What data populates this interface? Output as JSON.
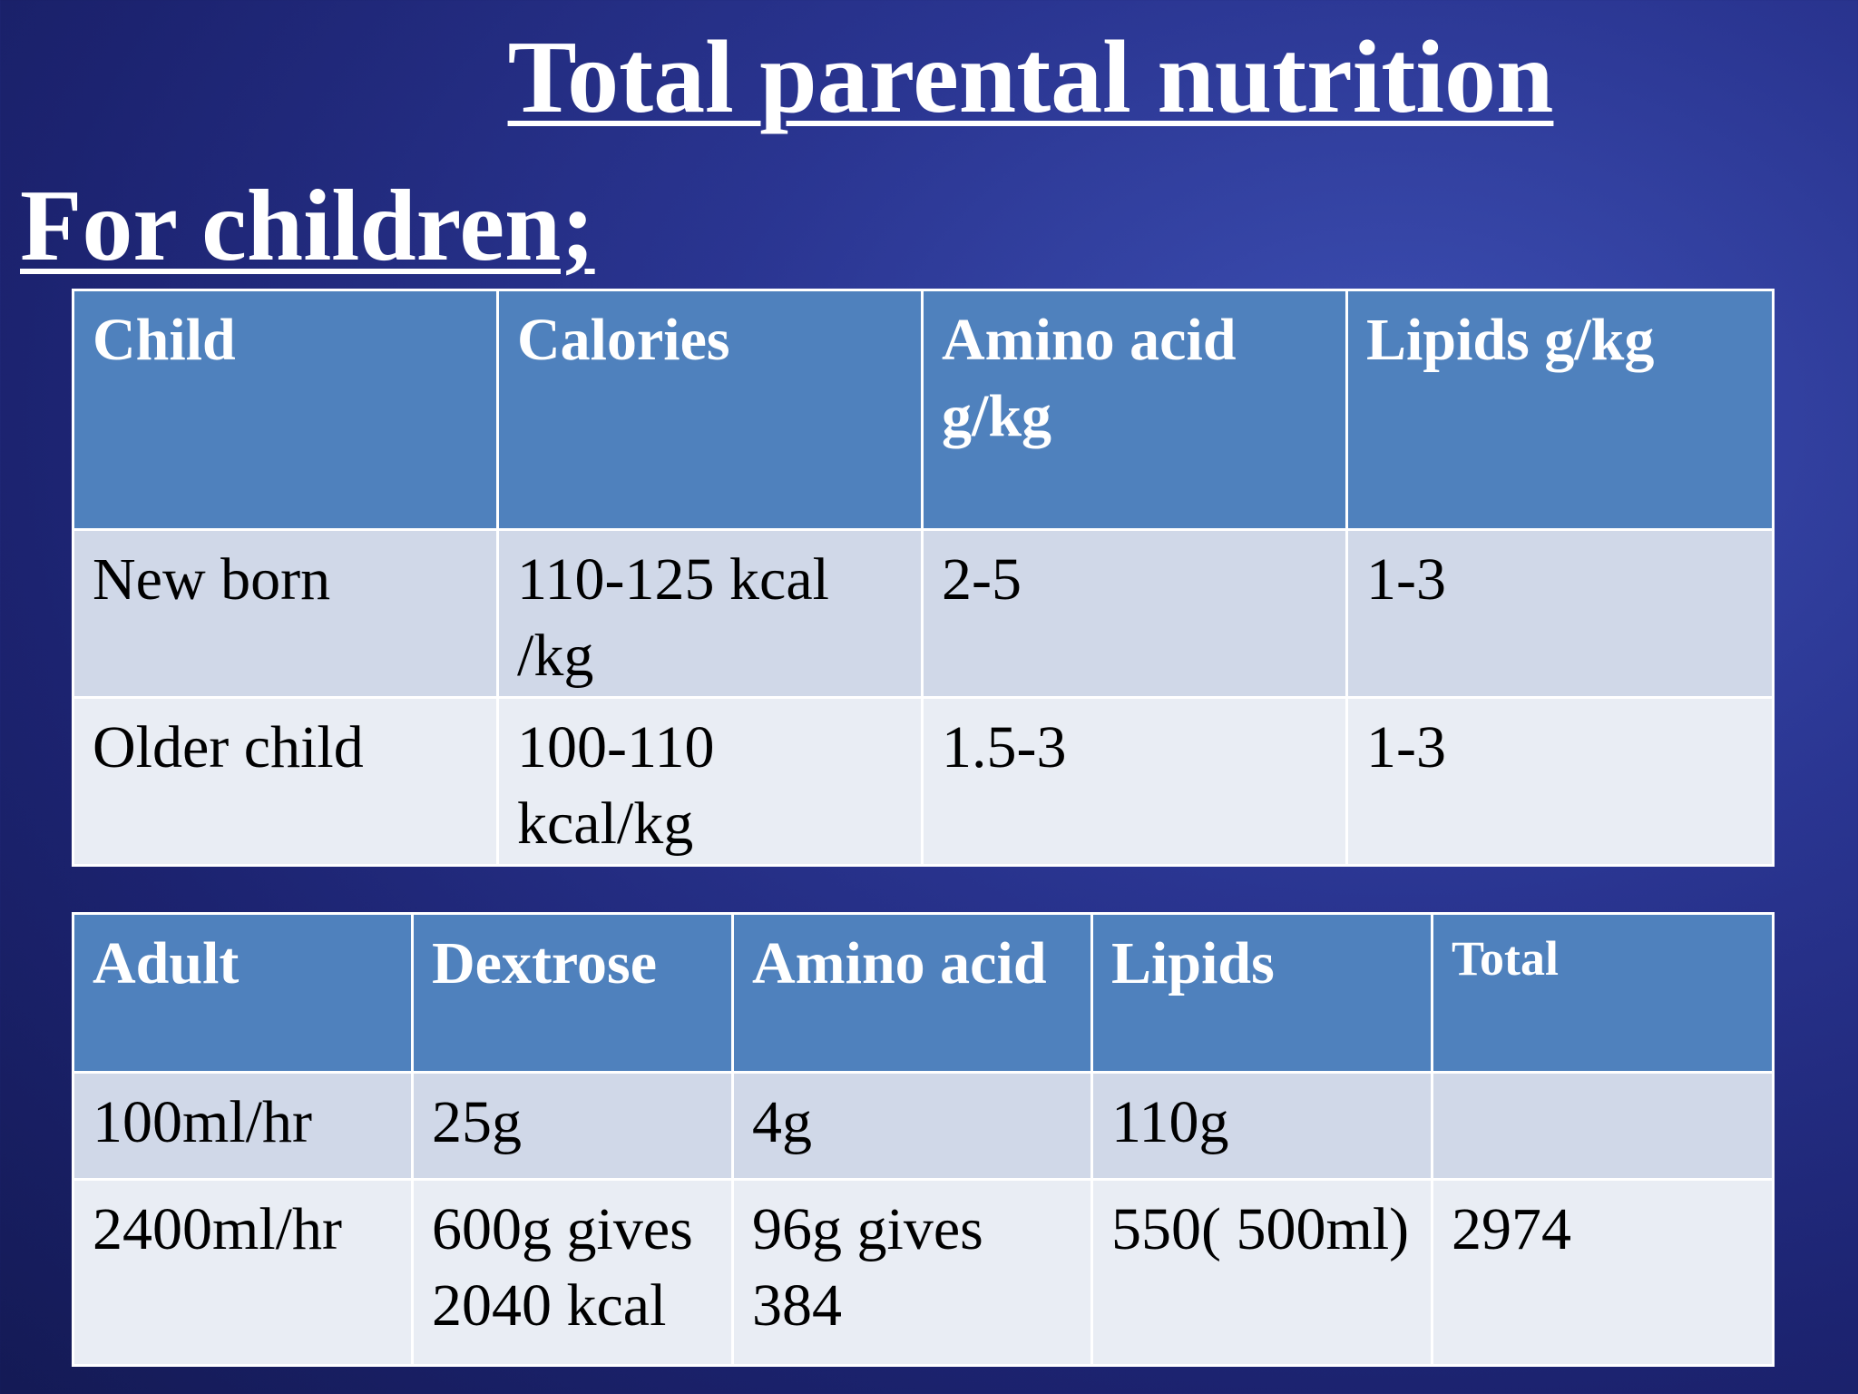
{
  "title": "Total parental nutrition",
  "subtitle": "For children;",
  "child_table": {
    "header": [
      "Child",
      "Calories",
      "Amino acid g/kg",
      "Lipids g/kg"
    ],
    "rows": [
      [
        "New born",
        "110-125 kcal /kg",
        "2-5",
        "1-3"
      ],
      [
        "Older child",
        "100-110 kcal/kg",
        "1.5-3",
        "1-3"
      ]
    ]
  },
  "adult_table": {
    "header": [
      "Adult",
      "Dextrose",
      "Amino acid",
      "Lipids",
      "Total"
    ],
    "rows": [
      [
        "100ml/hr",
        "25g",
        "4g",
        "110g",
        null
      ],
      [
        "2400ml/hr",
        "600g gives 2040 kcal",
        "96g gives 384",
        "550( 500ml)",
        "2974"
      ]
    ]
  }
}
